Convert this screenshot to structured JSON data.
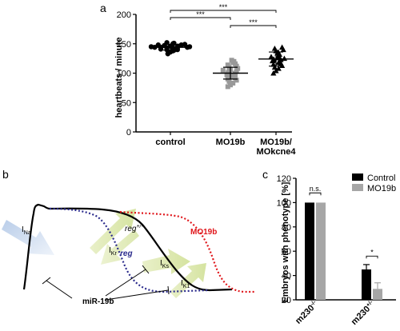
{
  "page": {
    "width": 500,
    "height": 414
  },
  "panel_a": {
    "letter": "a",
    "chart_data": {
      "type": "scatter",
      "ylabel": "heartbeats / minute",
      "ylim": [
        0,
        200
      ],
      "yticks": [
        "0",
        "50",
        "100",
        "150",
        "200"
      ],
      "categories": [
        "control",
        "MO19b",
        "MO19b/\nMOkcne4"
      ],
      "category_lines": [
        [
          "control"
        ],
        [
          "MO19b"
        ],
        [
          "MO19b/",
          "MOkcne4"
        ]
      ],
      "series": [
        {
          "name": "control",
          "marker": "circle",
          "color": "#000000",
          "mean": 144,
          "sd": 5,
          "values": [
            133,
            136,
            138,
            139,
            140,
            140,
            141,
            142,
            142,
            143,
            143,
            144,
            144,
            144,
            145,
            145,
            146,
            146,
            147,
            148,
            148,
            149,
            150,
            151,
            152
          ]
        },
        {
          "name": "MO19b",
          "marker": "square",
          "color": "#999999",
          "mean": 100,
          "sd": 10,
          "values": [
            77,
            80,
            83,
            86,
            88,
            90,
            92,
            94,
            96,
            97,
            98,
            100,
            101,
            102,
            103,
            105,
            106,
            108,
            110,
            112,
            114,
            116,
            118,
            120,
            122
          ]
        },
        {
          "name": "MO19b/MOkcne4",
          "marker": "triangle",
          "color": "#000000",
          "mean": 124,
          "sd": 12,
          "values": [
            100,
            104,
            108,
            110,
            113,
            115,
            117,
            118,
            120,
            121,
            122,
            123,
            124,
            125,
            126,
            127,
            128,
            130,
            132,
            134,
            136,
            138,
            140,
            142,
            144
          ]
        }
      ],
      "significance": [
        {
          "from": "control",
          "to": "MO19b",
          "label": "***"
        },
        {
          "from": "control",
          "to": "MO19b/\nMOkcne4",
          "label": "***"
        },
        {
          "from": "MO19b",
          "to": "MO19b/\nMOkcne4",
          "label": "***"
        }
      ]
    }
  },
  "panel_b": {
    "letter": "b",
    "labels": {
      "ina_main": "I",
      "ina_sub": "Na",
      "ikr_main": "I",
      "ikr_sub": "Kr",
      "iks_main": "I",
      "iks_sub": "Ks",
      "ik1_main": "I",
      "ik1_sub": "K1",
      "reg_plus": "reg",
      "reg_plus_sup": "+/-",
      "reg": "reg",
      "mo19b": "MO19b",
      "mir": "miR-19b"
    },
    "colors": {
      "reg_curve": "#2b2b8c",
      "mo19b_curve": "#e0161b",
      "arrow_green": "#dde9b0",
      "arrow_blue": "#c9d9ee"
    }
  },
  "panel_c": {
    "letter": "c",
    "chart_data": {
      "type": "bar",
      "ylabel": "Embryos with phenotype [%]",
      "ylim": [
        20,
        120
      ],
      "yticks": [
        "20",
        "40",
        "60",
        "80",
        "100",
        "120"
      ],
      "categories": [
        "m230",
        "m230"
      ],
      "category_sups": [
        "-/-",
        "+/-"
      ],
      "series": [
        {
          "name": "Control",
          "color": "#000000",
          "values": [
            100,
            45
          ],
          "errors": [
            0,
            4
          ]
        },
        {
          "name": "MO19b",
          "color": "#a6a6a6",
          "values": [
            100,
            29
          ],
          "errors": [
            0,
            5
          ]
        }
      ],
      "annotations": [
        {
          "category": 0,
          "label": "n.s."
        },
        {
          "category": 1,
          "label": "*"
        }
      ],
      "legend": "top-right"
    }
  }
}
